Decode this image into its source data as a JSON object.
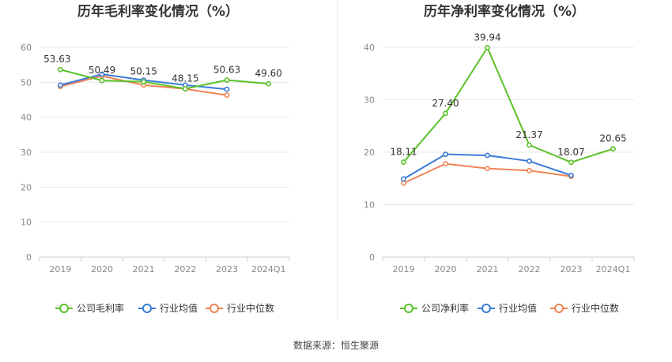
{
  "source_text": "数据来源：恒生聚源",
  "chart_data": [
    {
      "type": "line",
      "title": "历年毛利率变化情况（%）",
      "categories": [
        "2019",
        "2020",
        "2021",
        "2022",
        "2023",
        "2024Q1"
      ],
      "ylim": [
        0,
        60
      ],
      "yticks": [
        0,
        10,
        20,
        30,
        40,
        50,
        60
      ],
      "grid": true,
      "legend_position": "bottom",
      "series": [
        {
          "name": "公司毛利率",
          "color": "#5ac229",
          "values": [
            53.63,
            50.49,
            50.15,
            48.15,
            50.63,
            49.6
          ],
          "labels": [
            "53.63",
            "50.49",
            "50.15",
            "48.15",
            "50.63",
            "49.60"
          ]
        },
        {
          "name": "行业均值",
          "color": "#3a7bd5",
          "values": [
            49.2,
            52.3,
            50.6,
            49.2,
            48.0,
            null
          ],
          "labels": null
        },
        {
          "name": "行业中位数",
          "color": "#f08354",
          "values": [
            48.8,
            51.8,
            49.2,
            48.1,
            46.3,
            null
          ],
          "labels": null
        }
      ]
    },
    {
      "type": "line",
      "title": "历年净利率变化情况（%）",
      "categories": [
        "2019",
        "2020",
        "2021",
        "2022",
        "2023",
        "2024Q1"
      ],
      "ylim": [
        0,
        40
      ],
      "yticks": [
        0,
        10,
        20,
        30,
        40
      ],
      "grid": true,
      "legend_position": "bottom",
      "series": [
        {
          "name": "公司净利率",
          "color": "#5ac229",
          "values": [
            18.11,
            27.4,
            39.94,
            21.37,
            18.07,
            20.65
          ],
          "labels": [
            "18.11",
            "27.40",
            "39.94",
            "21.37",
            "18.07",
            "20.65"
          ]
        },
        {
          "name": "行业均值",
          "color": "#3a7bd5",
          "values": [
            14.9,
            19.6,
            19.4,
            18.3,
            15.6,
            null
          ],
          "labels": null
        },
        {
          "name": "行业中位数",
          "color": "#f08354",
          "values": [
            14.1,
            17.8,
            16.9,
            16.5,
            15.4,
            null
          ],
          "labels": null
        }
      ]
    }
  ]
}
